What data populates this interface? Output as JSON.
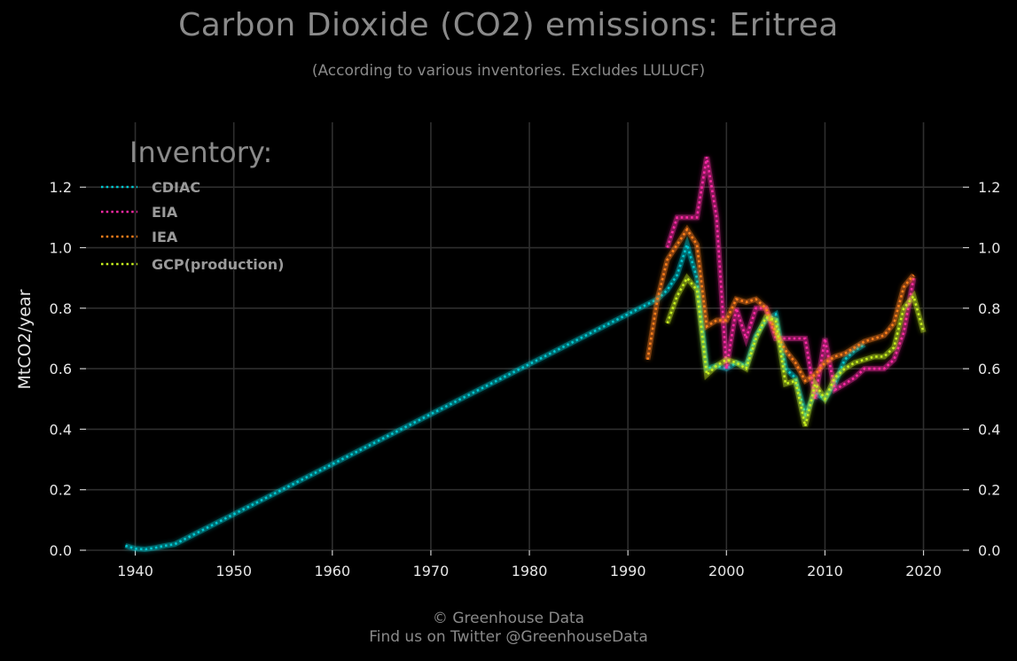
{
  "header": {
    "title": "Carbon Dioxide (CO2) emissions: Eritrea",
    "subtitle": "(According to various inventories. Excludes LULUCF)"
  },
  "footer": {
    "line1": "© Greenhouse Data",
    "line2": "Find us on Twitter @GreenhouseData"
  },
  "chart_data": {
    "type": "line",
    "title": "Carbon Dioxide (CO2) emissions: Eritrea",
    "subtitle": "(According to various inventories. Excludes LULUCF)",
    "xlabel": "",
    "ylabel": "MtCO2/year",
    "xlim": [
      1935,
      2024
    ],
    "ylim": [
      0,
      1.35
    ],
    "x_ticks": [
      1940,
      1950,
      1960,
      1970,
      1980,
      1990,
      2000,
      2010,
      2020
    ],
    "y_ticks": [
      0.0,
      0.2,
      0.4,
      0.6,
      0.8,
      1.0,
      1.2
    ],
    "y_tick_labels": [
      "0.0",
      "0.2",
      "0.4",
      "0.6",
      "0.8",
      "1.0",
      "1.2"
    ],
    "grid": true,
    "legend_title": "Inventory:",
    "legend_position": "top-left",
    "series": [
      {
        "name": "CDIAC",
        "color": "#00c8d2",
        "points": [
          [
            1939,
            0.015
          ],
          [
            1940,
            0.005
          ],
          [
            1941,
            0.003
          ],
          [
            1942,
            0.008
          ],
          [
            1943,
            0.015
          ],
          [
            1944,
            0.02
          ],
          [
            1993,
            0.83
          ],
          [
            1994,
            0.86
          ],
          [
            1995,
            0.91
          ],
          [
            1996,
            1.01
          ],
          [
            1997,
            0.9
          ],
          [
            1998,
            0.6
          ],
          [
            1999,
            0.61
          ],
          [
            2000,
            0.6
          ],
          [
            2001,
            0.62
          ],
          [
            2002,
            0.61
          ],
          [
            2003,
            0.71
          ],
          [
            2004,
            0.76
          ],
          [
            2005,
            0.78
          ],
          [
            2006,
            0.6
          ],
          [
            2007,
            0.57
          ],
          [
            2008,
            0.45
          ],
          [
            2009,
            0.52
          ],
          [
            2010,
            0.5
          ],
          [
            2011,
            0.55
          ],
          [
            2012,
            0.63
          ],
          [
            2013,
            0.66
          ],
          [
            2014,
            0.68
          ]
        ]
      },
      {
        "name": "EIA",
        "color": "#ff2aa6",
        "points": [
          [
            1994,
            1.0
          ],
          [
            1995,
            1.1
          ],
          [
            1996,
            1.1
          ],
          [
            1997,
            1.1
          ],
          [
            1998,
            1.3
          ],
          [
            1999,
            1.1
          ],
          [
            2000,
            0.6
          ],
          [
            2001,
            0.8
          ],
          [
            2002,
            0.7
          ],
          [
            2003,
            0.8
          ],
          [
            2004,
            0.8
          ],
          [
            2005,
            0.7
          ],
          [
            2006,
            0.7
          ],
          [
            2007,
            0.7
          ],
          [
            2008,
            0.7
          ],
          [
            2009,
            0.5
          ],
          [
            2010,
            0.7
          ],
          [
            2011,
            0.53
          ],
          [
            2012,
            0.55
          ],
          [
            2013,
            0.57
          ],
          [
            2014,
            0.6
          ],
          [
            2015,
            0.6
          ],
          [
            2016,
            0.6
          ],
          [
            2017,
            0.63
          ],
          [
            2018,
            0.72
          ],
          [
            2019,
            0.9
          ]
        ]
      },
      {
        "name": "IEA",
        "color": "#ff7f1a",
        "points": [
          [
            1992,
            0.63
          ],
          [
            1993,
            0.83
          ],
          [
            1994,
            0.96
          ],
          [
            1995,
            1.01
          ],
          [
            1996,
            1.06
          ],
          [
            1997,
            1.01
          ],
          [
            1998,
            0.74
          ],
          [
            1999,
            0.76
          ],
          [
            2000,
            0.76
          ],
          [
            2001,
            0.83
          ],
          [
            2002,
            0.82
          ],
          [
            2003,
            0.83
          ],
          [
            2004,
            0.8
          ],
          [
            2005,
            0.72
          ],
          [
            2006,
            0.66
          ],
          [
            2007,
            0.62
          ],
          [
            2008,
            0.56
          ],
          [
            2009,
            0.58
          ],
          [
            2010,
            0.62
          ],
          [
            2011,
            0.64
          ],
          [
            2012,
            0.65
          ],
          [
            2013,
            0.67
          ],
          [
            2014,
            0.69
          ],
          [
            2015,
            0.7
          ],
          [
            2016,
            0.71
          ],
          [
            2017,
            0.75
          ],
          [
            2018,
            0.87
          ],
          [
            2019,
            0.91
          ]
        ]
      },
      {
        "name": "GCP(production)",
        "color": "#c8f01e",
        "points": [
          [
            1994,
            0.75
          ],
          [
            1995,
            0.84
          ],
          [
            1996,
            0.9
          ],
          [
            1997,
            0.86
          ],
          [
            1998,
            0.58
          ],
          [
            1999,
            0.61
          ],
          [
            2000,
            0.63
          ],
          [
            2001,
            0.62
          ],
          [
            2002,
            0.6
          ],
          [
            2003,
            0.7
          ],
          [
            2004,
            0.77
          ],
          [
            2005,
            0.76
          ],
          [
            2006,
            0.55
          ],
          [
            2007,
            0.56
          ],
          [
            2008,
            0.41
          ],
          [
            2009,
            0.55
          ],
          [
            2010,
            0.5
          ],
          [
            2011,
            0.57
          ],
          [
            2012,
            0.6
          ],
          [
            2013,
            0.62
          ],
          [
            2014,
            0.63
          ],
          [
            2015,
            0.64
          ],
          [
            2016,
            0.64
          ],
          [
            2017,
            0.67
          ],
          [
            2018,
            0.8
          ],
          [
            2019,
            0.84
          ],
          [
            2020,
            0.72
          ]
        ]
      }
    ]
  }
}
